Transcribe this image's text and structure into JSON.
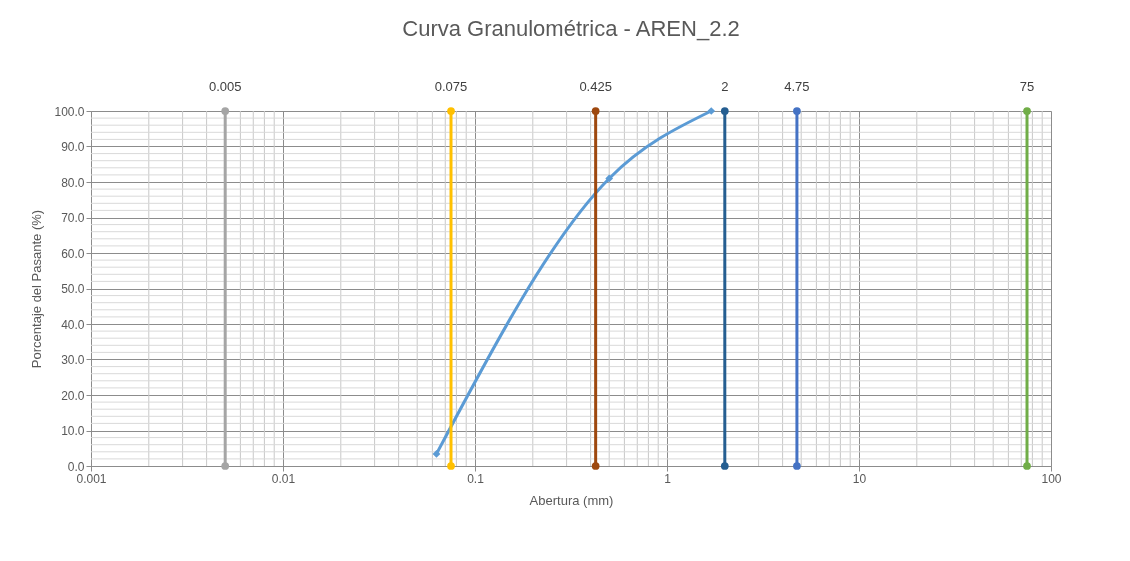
{
  "chart_data": {
    "type": "line",
    "title": "Curva Granulométrica - AREN_2.2",
    "xlabel": "Abertura (mm)",
    "ylabel": "Porcentaje del Pasante (%)",
    "log": "x",
    "grid": true,
    "xlim": [
      0.001,
      100
    ],
    "xticks": [
      0.001,
      0.01,
      0.1,
      1,
      10,
      100
    ],
    "ylim": [
      0,
      100
    ],
    "yticks": [
      {
        "value": 0,
        "label": "0.0"
      },
      {
        "value": 10,
        "label": "10.0"
      },
      {
        "value": 20,
        "label": "20.0"
      },
      {
        "value": 30,
        "label": "30.0"
      },
      {
        "value": 40,
        "label": "40.0"
      },
      {
        "value": 50,
        "label": "50.0"
      },
      {
        "value": 60,
        "label": "60.0"
      },
      {
        "value": 70,
        "label": "70.0"
      },
      {
        "value": 80,
        "label": "80.0"
      },
      {
        "value": 90,
        "label": "90.0"
      },
      {
        "value": 100,
        "label": "100.0"
      }
    ],
    "series": [
      {
        "color": "#5b9bd5",
        "x": [
          0.063,
          0.5,
          1.7
        ],
        "values": [
          3.4,
          81,
          100
        ],
        "marker": "diamond",
        "line_style": "solid"
      },
      {
        "name": "0.005",
        "color": "#a5a5a5",
        "x": [
          0.005,
          0.005
        ],
        "values": [
          0,
          100
        ],
        "marker": "circle"
      },
      {
        "name": "0.075",
        "color": "#ffc000",
        "x": [
          0.075,
          0.075
        ],
        "values": [
          0,
          100
        ],
        "marker": "circle"
      },
      {
        "name": "0.425",
        "color": "#9e480e",
        "x": [
          0.425,
          0.425
        ],
        "values": [
          0,
          100
        ],
        "marker": "circle"
      },
      {
        "name": "2",
        "color": "#255e91",
        "x": [
          2,
          2
        ],
        "values": [
          0,
          100
        ],
        "marker": "circle"
      },
      {
        "name": "4.75",
        "color": "#4472c4",
        "x": [
          4.75,
          4.75
        ],
        "values": [
          0,
          100
        ],
        "marker": "circle"
      },
      {
        "name": "75",
        "color": "#70ad47",
        "x": [
          75,
          75
        ],
        "values": [
          0,
          100
        ],
        "marker": "circle"
      }
    ]
  }
}
